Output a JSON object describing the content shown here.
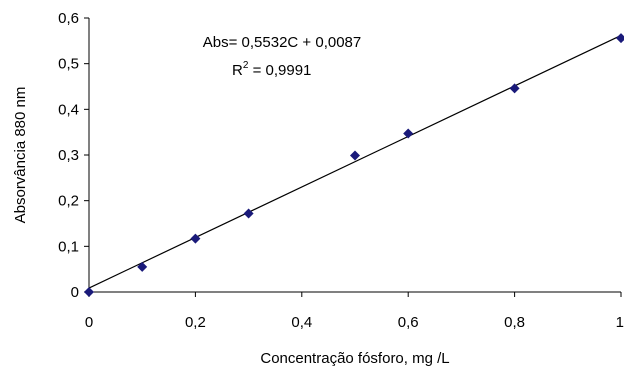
{
  "chart_data": {
    "type": "scatter",
    "xlabel": "Concentração fósforo, mg /L",
    "ylabel": "Absorvância 880 nm",
    "xlim": [
      0,
      1
    ],
    "ylim": [
      0,
      0.6
    ],
    "grid": false,
    "legend": "none",
    "x_ticks": [
      "0",
      "0,2",
      "0,4",
      "0,6",
      "0,8",
      "1"
    ],
    "y_ticks": [
      "0",
      "0,1",
      "0,2",
      "0,3",
      "0,4",
      "0,5",
      "0,6"
    ],
    "x_tick_values": [
      0,
      0.2,
      0.4,
      0.6,
      0.8,
      1.0
    ],
    "y_tick_values": [
      0,
      0.1,
      0.2,
      0.3,
      0.4,
      0.5,
      0.6
    ],
    "series": [
      {
        "points": [
          {
            "x": 0,
            "y": 0
          },
          {
            "x": 0.1,
            "y": 0.055
          },
          {
            "x": 0.2,
            "y": 0.117
          },
          {
            "x": 0.3,
            "y": 0.172
          },
          {
            "x": 0.5,
            "y": 0.299
          },
          {
            "x": 0.6,
            "y": 0.347
          },
          {
            "x": 0.8,
            "y": 0.446
          },
          {
            "x": 1.0,
            "y": 0.556
          }
        ],
        "marker": "diamond",
        "color": "#1a1a7a"
      }
    ],
    "trendline": {
      "slope": 0.5532,
      "intercept": 0.0087,
      "x_from": 0,
      "x_to": 1.0,
      "color": "#000000"
    },
    "annotations": {
      "equation": "Abs= 0,5532C + 0,0087",
      "r2_prefix": "R",
      "r2_sup": "2",
      "r2_value": " = 0,9991"
    }
  }
}
